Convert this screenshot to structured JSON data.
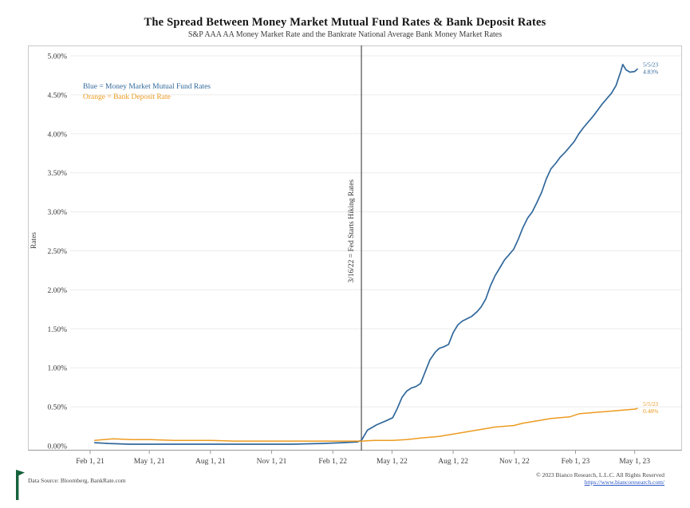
{
  "title": "The Spread Between Money Market Mutual Fund Rates & Bank Deposit Rates",
  "subtitle": "S&P AAA AA Money Market Rate and the Bankrate National Average Bank Money Market Rates",
  "legend": {
    "blue_label": "Blue = Money Market Mutual Fund Rates",
    "orange_label": "Orange = Bank Deposit Rate"
  },
  "footer": {
    "source": "Data Source: Bloomberg, BankRate.com",
    "copyright": "© 2023 Bianco Research, L.L.C. All Rights Reserved",
    "link": "https://www.biancoresearch.com/"
  },
  "colors": {
    "blue": "#31689b",
    "orange": "#ec9b20",
    "event_line": "#4d4d4d",
    "grid": "#ebebeb",
    "axis": "#9a9a9a",
    "tick_text": "#3a3a3a",
    "flag_green": "#15613b",
    "link_blue": "#2a56c6"
  },
  "chart_data": {
    "type": "line",
    "title": "The Spread Between Money Market Mutual Fund Rates & Bank Deposit Rates",
    "subtitle": "S&P AAA AA Money Market Rate and the Bankrate National Average Bank Money Market Rates",
    "xlabel": "",
    "ylabel": "Rates",
    "ylim": [
      0,
      5
    ],
    "grid": "horizontal-faint",
    "legend_position": "upper-left-inside",
    "y_tick_values": [
      0,
      0.5,
      1,
      1.5,
      2,
      2.5,
      3,
      3.5,
      4,
      4.5,
      5
    ],
    "y_tick_labels": [
      "0.00%",
      "0.50%",
      "1.00%",
      "1.50%",
      "2.00%",
      "2.50%",
      "3.00%",
      "3.50%",
      "4.00%",
      "4.50%",
      "5.00%"
    ],
    "x_domain": [
      "2021-01-02",
      "2023-07-10"
    ],
    "x_tick_dates": [
      "2021-02-01",
      "2021-05-01",
      "2021-08-01",
      "2021-11-01",
      "2022-02-01",
      "2022-05-01",
      "2022-08-01",
      "2022-11-01",
      "2023-02-01",
      "2023-05-01"
    ],
    "x_tick_labels": [
      "Feb 1, 21",
      "May 1, 21",
      "Aug 1, 21",
      "Nov 1, 21",
      "Feb 1, 22",
      "May 1, 22",
      "Aug 1, 22",
      "Nov 1, 22",
      "Feb 1, 23",
      "May 1, 23"
    ],
    "event_line": {
      "date": "2022-03-16",
      "label": "3/16/22 = Fed Starts Hiking Rates"
    },
    "series": [
      {
        "name": "Money Market Mutual Fund Rates",
        "color": "#31689b",
        "end_label": {
          "date": "5/5/23",
          "value": "4.83%"
        },
        "points": [
          [
            "2021-02-08",
            0.04
          ],
          [
            "2021-03-01",
            0.03
          ],
          [
            "2021-04-01",
            0.02
          ],
          [
            "2021-06-01",
            0.02
          ],
          [
            "2021-08-01",
            0.02
          ],
          [
            "2021-10-01",
            0.02
          ],
          [
            "2021-12-01",
            0.02
          ],
          [
            "2022-01-15",
            0.03
          ],
          [
            "2022-02-15",
            0.04
          ],
          [
            "2022-03-10",
            0.05
          ],
          [
            "2022-03-16",
            0.07
          ],
          [
            "2022-03-25",
            0.2
          ],
          [
            "2022-04-08",
            0.27
          ],
          [
            "2022-04-22",
            0.32
          ],
          [
            "2022-05-02",
            0.36
          ],
          [
            "2022-05-09",
            0.48
          ],
          [
            "2022-05-16",
            0.62
          ],
          [
            "2022-05-23",
            0.7
          ],
          [
            "2022-05-30",
            0.74
          ],
          [
            "2022-06-06",
            0.76
          ],
          [
            "2022-06-13",
            0.8
          ],
          [
            "2022-06-20",
            0.95
          ],
          [
            "2022-06-27",
            1.1
          ],
          [
            "2022-07-05",
            1.2
          ],
          [
            "2022-07-11",
            1.25
          ],
          [
            "2022-07-18",
            1.27
          ],
          [
            "2022-07-25",
            1.3
          ],
          [
            "2022-08-01",
            1.45
          ],
          [
            "2022-08-08",
            1.55
          ],
          [
            "2022-08-15",
            1.6
          ],
          [
            "2022-08-22",
            1.63
          ],
          [
            "2022-08-29",
            1.66
          ],
          [
            "2022-09-06",
            1.72
          ],
          [
            "2022-09-12",
            1.78
          ],
          [
            "2022-09-19",
            1.88
          ],
          [
            "2022-09-26",
            2.05
          ],
          [
            "2022-10-03",
            2.18
          ],
          [
            "2022-10-10",
            2.28
          ],
          [
            "2022-10-17",
            2.38
          ],
          [
            "2022-10-24",
            2.45
          ],
          [
            "2022-10-31",
            2.52
          ],
          [
            "2022-11-07",
            2.65
          ],
          [
            "2022-11-14",
            2.8
          ],
          [
            "2022-11-21",
            2.92
          ],
          [
            "2022-11-28",
            3.0
          ],
          [
            "2022-12-05",
            3.12
          ],
          [
            "2022-12-12",
            3.25
          ],
          [
            "2022-12-19",
            3.42
          ],
          [
            "2022-12-26",
            3.55
          ],
          [
            "2023-01-02",
            3.62
          ],
          [
            "2023-01-09",
            3.7
          ],
          [
            "2023-01-16",
            3.76
          ],
          [
            "2023-01-23",
            3.83
          ],
          [
            "2023-01-30",
            3.9
          ],
          [
            "2023-02-06",
            4.0
          ],
          [
            "2023-02-13",
            4.08
          ],
          [
            "2023-02-20",
            4.15
          ],
          [
            "2023-02-27",
            4.22
          ],
          [
            "2023-03-06",
            4.3
          ],
          [
            "2023-03-13",
            4.38
          ],
          [
            "2023-03-20",
            4.45
          ],
          [
            "2023-03-27",
            4.52
          ],
          [
            "2023-04-03",
            4.62
          ],
          [
            "2023-04-10",
            4.8
          ],
          [
            "2023-04-13",
            4.89
          ],
          [
            "2023-04-18",
            4.82
          ],
          [
            "2023-04-24",
            4.79
          ],
          [
            "2023-05-01",
            4.8
          ],
          [
            "2023-05-05",
            4.83
          ]
        ]
      },
      {
        "name": "Bank Deposit Rate",
        "color": "#ec9b20",
        "end_label": {
          "date": "5/5/23",
          "value": "0.48%"
        },
        "points": [
          [
            "2021-02-08",
            0.07
          ],
          [
            "2021-03-08",
            0.09
          ],
          [
            "2021-04-05",
            0.08
          ],
          [
            "2021-05-03",
            0.08
          ],
          [
            "2021-06-07",
            0.07
          ],
          [
            "2021-07-05",
            0.07
          ],
          [
            "2021-08-02",
            0.07
          ],
          [
            "2021-09-06",
            0.06
          ],
          [
            "2021-10-04",
            0.06
          ],
          [
            "2021-11-01",
            0.06
          ],
          [
            "2021-12-06",
            0.06
          ],
          [
            "2022-01-03",
            0.06
          ],
          [
            "2022-02-07",
            0.06
          ],
          [
            "2022-03-07",
            0.06
          ],
          [
            "2022-03-16",
            0.06
          ],
          [
            "2022-04-04",
            0.07
          ],
          [
            "2022-05-02",
            0.07
          ],
          [
            "2022-05-23",
            0.08
          ],
          [
            "2022-06-13",
            0.1
          ],
          [
            "2022-06-27",
            0.11
          ],
          [
            "2022-07-11",
            0.12
          ],
          [
            "2022-07-25",
            0.14
          ],
          [
            "2022-08-08",
            0.16
          ],
          [
            "2022-08-22",
            0.18
          ],
          [
            "2022-09-05",
            0.2
          ],
          [
            "2022-09-19",
            0.22
          ],
          [
            "2022-10-03",
            0.24
          ],
          [
            "2022-10-17",
            0.25
          ],
          [
            "2022-10-31",
            0.26
          ],
          [
            "2022-11-14",
            0.29
          ],
          [
            "2022-11-28",
            0.31
          ],
          [
            "2022-12-12",
            0.33
          ],
          [
            "2022-12-26",
            0.35
          ],
          [
            "2023-01-09",
            0.36
          ],
          [
            "2023-01-23",
            0.37
          ],
          [
            "2023-02-06",
            0.41
          ],
          [
            "2023-02-20",
            0.42
          ],
          [
            "2023-03-06",
            0.43
          ],
          [
            "2023-03-20",
            0.44
          ],
          [
            "2023-04-03",
            0.45
          ],
          [
            "2023-04-17",
            0.46
          ],
          [
            "2023-05-01",
            0.47
          ],
          [
            "2023-05-05",
            0.48
          ]
        ]
      }
    ]
  }
}
